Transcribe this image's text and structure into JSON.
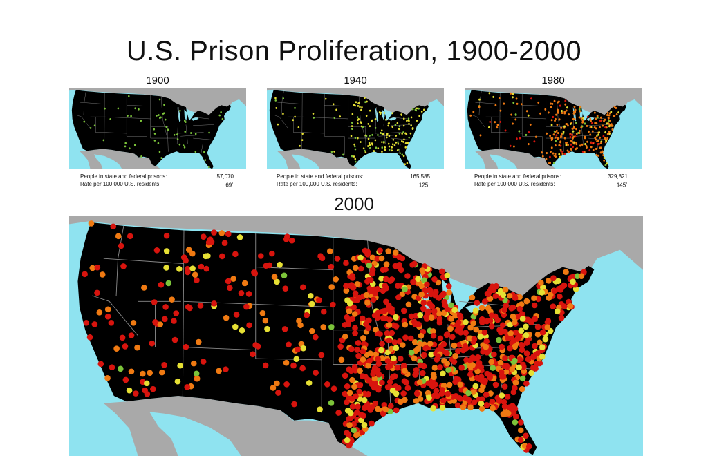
{
  "title": "U.S. Prison Proliferation, 1900-2000",
  "colors": {
    "ocean": "#8fe3f0",
    "foreign_land": "#a9a9a9",
    "us_land": "#000000",
    "state_lines": "#8a8a8a",
    "dot_green": "#7cc43a",
    "dot_yellow": "#e6e034",
    "dot_orange": "#f07a12",
    "dot_red": "#d8140e"
  },
  "panels": [
    {
      "year": "1900",
      "stats": {
        "people_label": "People in state and federal prisons:",
        "people_value": "57,070",
        "rate_label": "Rate per 100,000 U.S. residents:",
        "rate_value": "69",
        "rate_note": "1"
      }
    },
    {
      "year": "1940",
      "stats": {
        "people_label": "People in state and federal prisons:",
        "people_value": "165,585",
        "rate_label": "Rate per 100,000 U.S. residents:",
        "rate_value": "125",
        "rate_note": "1"
      }
    },
    {
      "year": "1980",
      "stats": {
        "people_label": "People in state and federal prisons:",
        "people_value": "329,821",
        "rate_label": "Rate per 100,000 U.S. residents:",
        "rate_value": "145",
        "rate_note": "1"
      }
    }
  ],
  "main_map": {
    "year": "2000"
  }
}
